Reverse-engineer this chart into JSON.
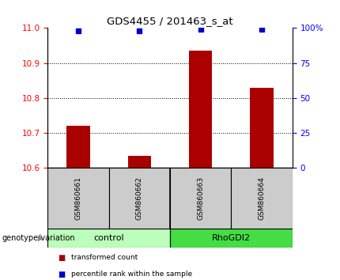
{
  "title": "GDS4455 / 201463_s_at",
  "samples": [
    "GSM860661",
    "GSM860662",
    "GSM860663",
    "GSM860664"
  ],
  "transformed_counts": [
    10.72,
    10.635,
    10.935,
    10.83
  ],
  "percentile_ranks": [
    98,
    98,
    99,
    99
  ],
  "ylim_left": [
    10.6,
    11.0
  ],
  "ylim_right": [
    0,
    100
  ],
  "yticks_left": [
    10.6,
    10.7,
    10.8,
    10.9,
    11.0
  ],
  "yticks_right": [
    0,
    25,
    50,
    75,
    100
  ],
  "ytick_right_labels": [
    "0",
    "25",
    "50",
    "75",
    "100%"
  ],
  "bar_color": "#aa0000",
  "dot_color": "#0000cc",
  "sample_box_color": "#cccccc",
  "group_control_color": "#bbffbb",
  "group_rhodgi2_color": "#44dd44",
  "legend_red_label": "transformed count",
  "legend_blue_label": "percentile rank within the sample",
  "genotype_label": "genotype/variation"
}
